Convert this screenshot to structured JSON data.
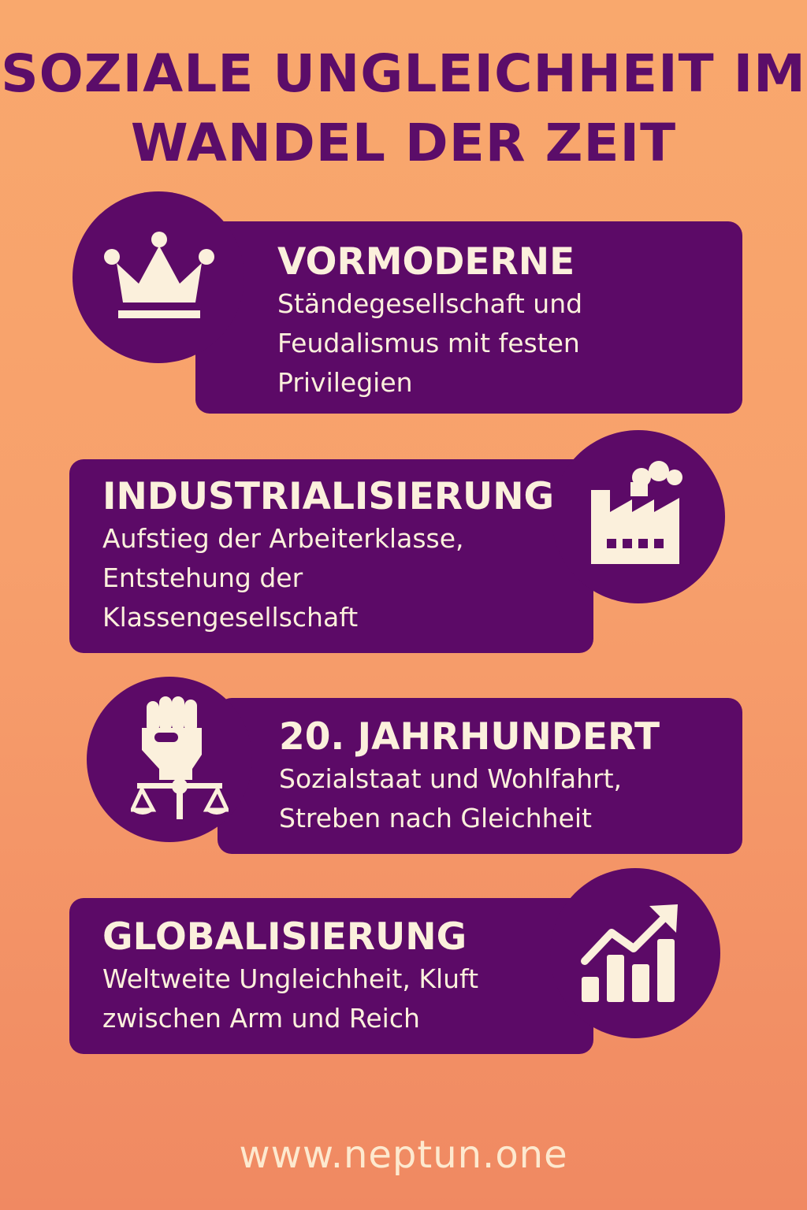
{
  "title": {
    "line1": "SOZIALE UNGLEICHHEIT IM",
    "line2": "WANDEL DER ZEIT"
  },
  "colors": {
    "background_top": "#f9a86d",
    "background_bottom": "#f08962",
    "accent": "#5c0a67",
    "text_light": "#fbf0dc"
  },
  "sections": [
    {
      "heading": "VORMODERNE",
      "description": "Ständegesellschaft und\nFeudalismus mit festen\nPrivilegien",
      "icon": "crown-icon"
    },
    {
      "heading": "INDUSTRIALISIERUNG",
      "description": "Aufstieg der Arbeiterklasse,\nEntstehung der\nKlassengesellschaft",
      "icon": "factory-icon"
    },
    {
      "heading": "20. JAHRHUNDERT",
      "description": "Sozialstaat und Wohlfahrt,\nStreben nach Gleichheit",
      "icon": "fist-scales-icon"
    },
    {
      "heading": "GLOBALISIERUNG",
      "description": "Weltweite Ungleichheit, Kluft\nzwischen Arm und Reich",
      "icon": "growth-chart-icon"
    }
  ],
  "footer": {
    "url": "www.neptun.one"
  }
}
